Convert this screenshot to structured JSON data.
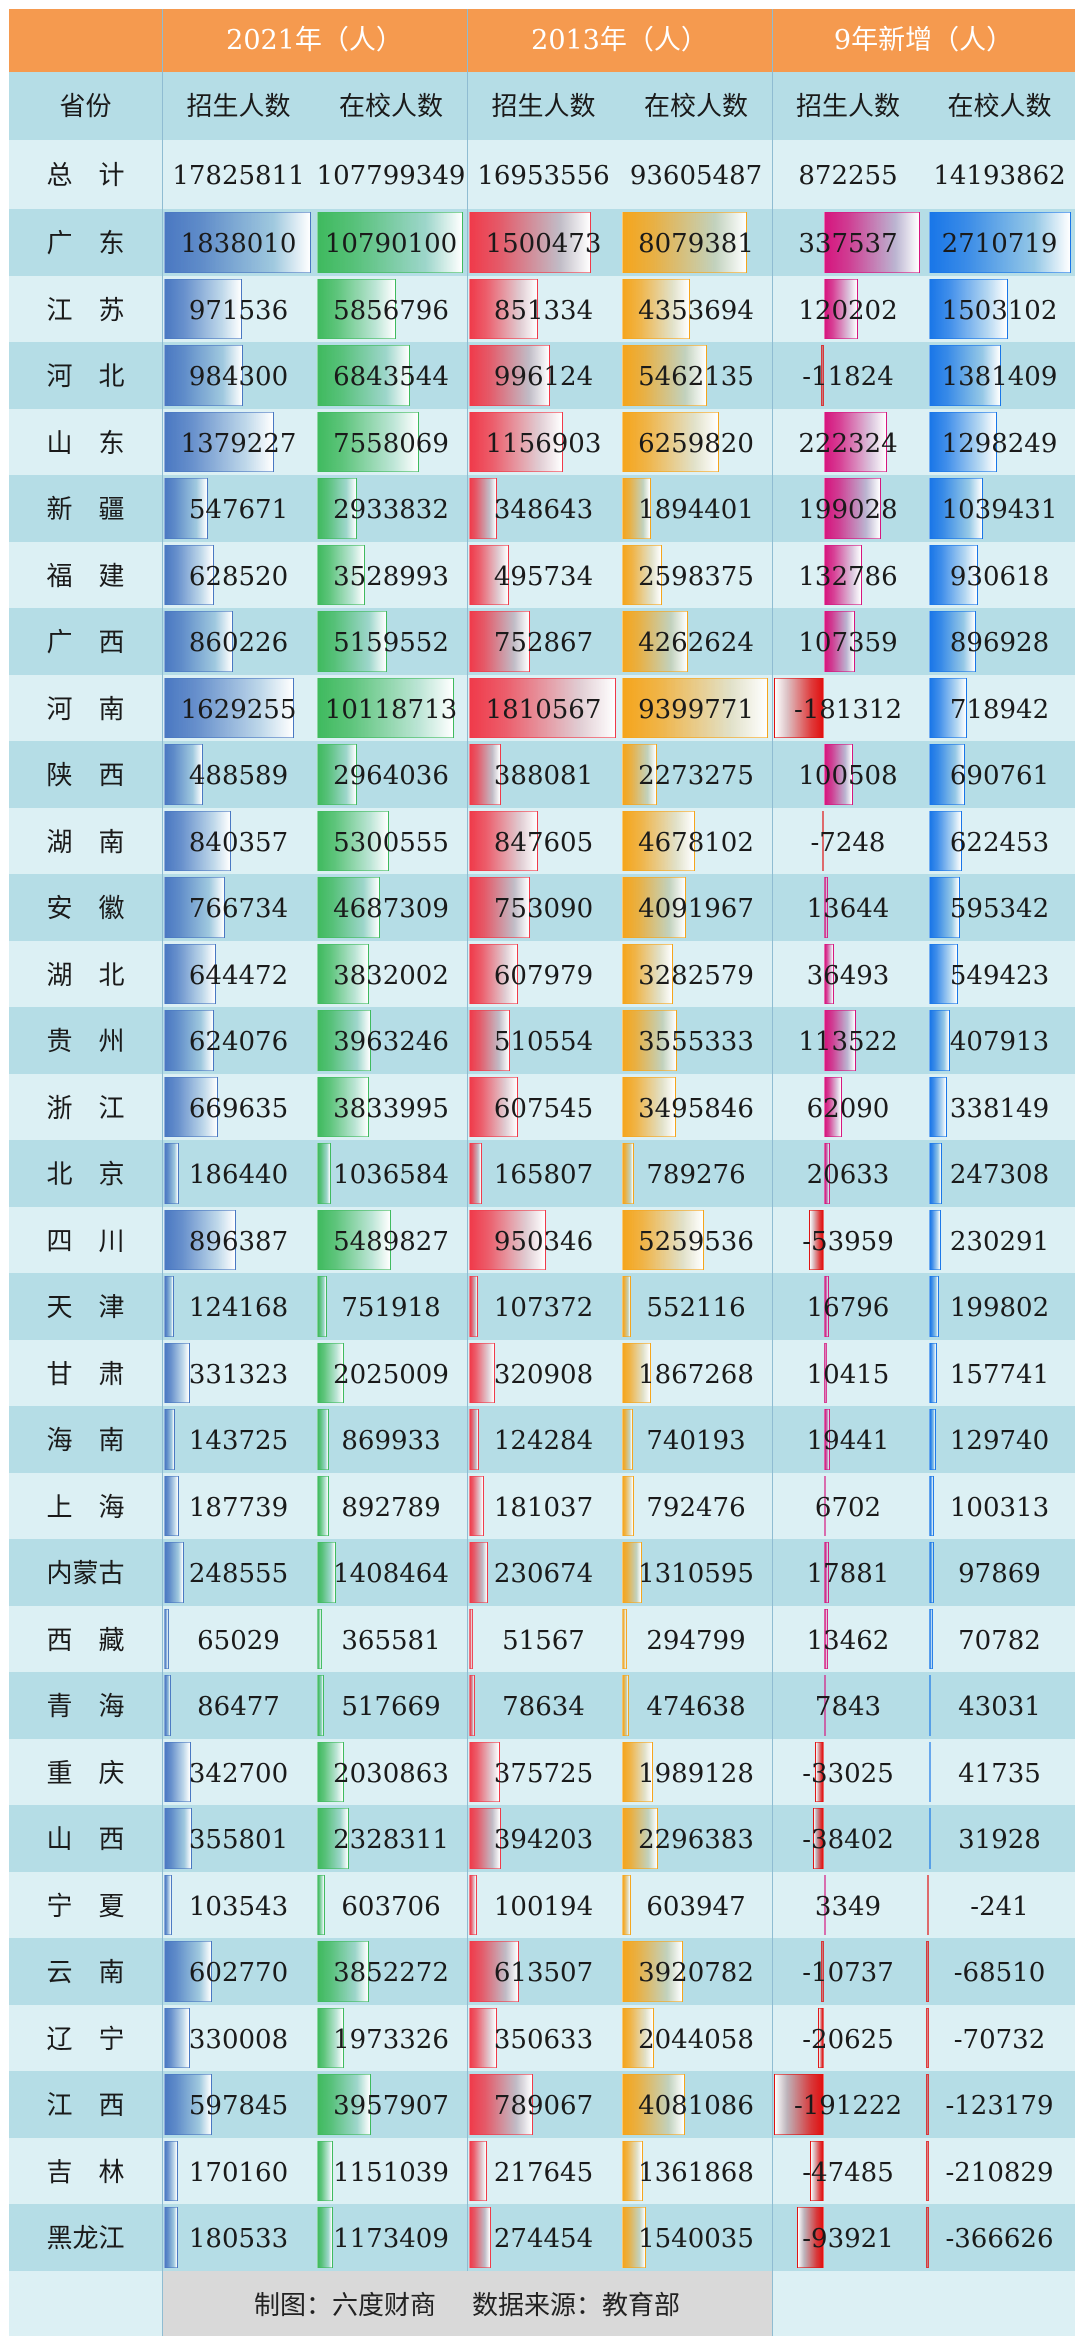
{
  "header": {
    "group_2021": "2021年（人）",
    "group_2013": "2013年（人）",
    "group_new": "9年新增（人）",
    "province": "省份",
    "enroll": "招生人数",
    "in_school": "在校人数"
  },
  "total": {
    "label": "总　计",
    "values": [
      "17825811",
      "107799349",
      "16953556",
      "93605487",
      "872255",
      "14193862"
    ]
  },
  "footer": {
    "chart_by": "制图：六度财商",
    "source": "数据来源：教育部"
  },
  "colors": {
    "header_orange": "#f59a4f",
    "row_light": "#dcf0f4",
    "row_dark": "#b5dde6",
    "footer_bg": "#d9d9d9",
    "enroll_2021": "#4a78c2",
    "school_2021": "#3fba5e",
    "enroll_2013": "#f03a4a",
    "school_2013": "#f5a51c",
    "new_enroll_pos": "#d6157e",
    "new_enroll_neg": "#e01010",
    "new_school_pos": "#1976e8",
    "new_school_neg": "#e01010"
  },
  "chart_data": {
    "type": "table",
    "columns": [
      "2021年招生人数",
      "2021年在校人数",
      "2013年招生人数",
      "2013年在校人数",
      "9年新增招生人数",
      "9年新增在校人数"
    ],
    "rows": [
      {
        "province": "广　东",
        "values": [
          1838010,
          10790100,
          1500473,
          8079381,
          337537,
          2710719
        ]
      },
      {
        "province": "江　苏",
        "values": [
          971536,
          5856796,
          851334,
          4353694,
          120202,
          1503102
        ]
      },
      {
        "province": "河　北",
        "values": [
          984300,
          6843544,
          996124,
          5462135,
          -11824,
          1381409
        ]
      },
      {
        "province": "山　东",
        "values": [
          1379227,
          7558069,
          1156903,
          6259820,
          222324,
          1298249
        ]
      },
      {
        "province": "新　疆",
        "values": [
          547671,
          2933832,
          348643,
          1894401,
          199028,
          1039431
        ]
      },
      {
        "province": "福　建",
        "values": [
          628520,
          3528993,
          495734,
          2598375,
          132786,
          930618
        ]
      },
      {
        "province": "广　西",
        "values": [
          860226,
          5159552,
          752867,
          4262624,
          107359,
          896928
        ]
      },
      {
        "province": "河　南",
        "values": [
          1629255,
          10118713,
          1810567,
          9399771,
          -181312,
          718942
        ]
      },
      {
        "province": "陕　西",
        "values": [
          488589,
          2964036,
          388081,
          2273275,
          100508,
          690761
        ]
      },
      {
        "province": "湖　南",
        "values": [
          840357,
          5300555,
          847605,
          4678102,
          -7248,
          622453
        ]
      },
      {
        "province": "安　徽",
        "values": [
          766734,
          4687309,
          753090,
          4091967,
          13644,
          595342
        ]
      },
      {
        "province": "湖　北",
        "values": [
          644472,
          3832002,
          607979,
          3282579,
          36493,
          549423
        ]
      },
      {
        "province": "贵　州",
        "values": [
          624076,
          3963246,
          510554,
          3555333,
          113522,
          407913
        ]
      },
      {
        "province": "浙　江",
        "values": [
          669635,
          3833995,
          607545,
          3495846,
          62090,
          338149
        ]
      },
      {
        "province": "北　京",
        "values": [
          186440,
          1036584,
          165807,
          789276,
          20633,
          247308
        ]
      },
      {
        "province": "四　川",
        "values": [
          896387,
          5489827,
          950346,
          5259536,
          -53959,
          230291
        ]
      },
      {
        "province": "天　津",
        "values": [
          124168,
          751918,
          107372,
          552116,
          16796,
          199802
        ]
      },
      {
        "province": "甘　肃",
        "values": [
          331323,
          2025009,
          320908,
          1867268,
          10415,
          157741
        ]
      },
      {
        "province": "海　南",
        "values": [
          143725,
          869933,
          124284,
          740193,
          19441,
          129740
        ]
      },
      {
        "province": "上　海",
        "values": [
          187739,
          892789,
          181037,
          792476,
          6702,
          100313
        ]
      },
      {
        "province": "内蒙古",
        "values": [
          248555,
          1408464,
          230674,
          1310595,
          17881,
          97869
        ]
      },
      {
        "province": "西　藏",
        "values": [
          65029,
          365581,
          51567,
          294799,
          13462,
          70782
        ]
      },
      {
        "province": "青　海",
        "values": [
          86477,
          517669,
          78634,
          474638,
          7843,
          43031
        ]
      },
      {
        "province": "重　庆",
        "values": [
          342700,
          2030863,
          375725,
          1989128,
          -33025,
          41735
        ]
      },
      {
        "province": "山　西",
        "values": [
          355801,
          2328311,
          394203,
          2296383,
          -38402,
          31928
        ]
      },
      {
        "province": "宁　夏",
        "values": [
          103543,
          603706,
          100194,
          603947,
          3349,
          -241
        ]
      },
      {
        "province": "云　南",
        "values": [
          602770,
          3852272,
          613507,
          3920782,
          -10737,
          -68510
        ]
      },
      {
        "province": "辽　宁",
        "values": [
          330008,
          1973326,
          350633,
          2044058,
          -20625,
          -70732
        ]
      },
      {
        "province": "江　西",
        "values": [
          597845,
          3957907,
          789067,
          4081086,
          -191222,
          -123179
        ]
      },
      {
        "province": "吉　林",
        "values": [
          170160,
          1151039,
          217645,
          1361868,
          -47485,
          -210829
        ]
      },
      {
        "province": "黑龙江",
        "values": [
          180533,
          1173409,
          274454,
          1540035,
          -93921,
          -366626
        ]
      }
    ]
  }
}
